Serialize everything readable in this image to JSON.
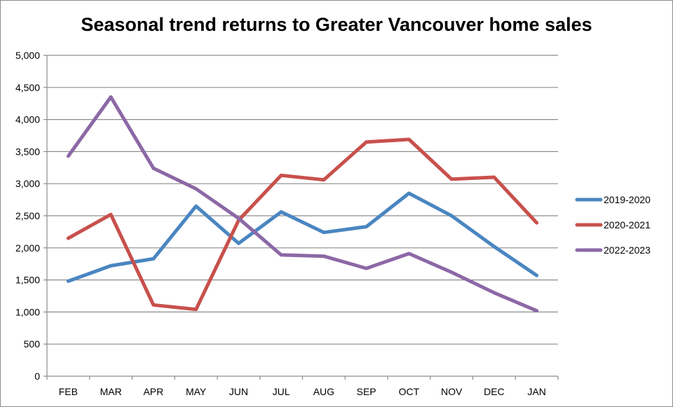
{
  "chart_data": {
    "type": "line",
    "title": "Seasonal trend returns to Greater Vancouver home sales",
    "xlabel": "",
    "ylabel": "",
    "categories": [
      "FEB",
      "MAR",
      "APR",
      "MAY",
      "JUN",
      "JUL",
      "AUG",
      "SEP",
      "OCT",
      "NOV",
      "DEC",
      "JAN"
    ],
    "yticks": [
      0,
      500,
      1000,
      1500,
      2000,
      2500,
      3000,
      3500,
      4000,
      4500,
      5000
    ],
    "ytick_labels": [
      "0",
      "500",
      "1,000",
      "1,500",
      "2,000",
      "2,500",
      "3,000",
      "3,500",
      "4,000",
      "4,500",
      "5,000"
    ],
    "ylim": [
      0,
      5000
    ],
    "grid": true,
    "legend_position": "right",
    "series": [
      {
        "name": "2019-2020",
        "color": "#4a86c1",
        "values": [
          1480,
          1720,
          1830,
          2650,
          2070,
          2560,
          2240,
          2330,
          2850,
          2500,
          2020,
          1570
        ]
      },
      {
        "name": "2020-2021",
        "color": "#c8504c",
        "values": [
          2150,
          2520,
          1110,
          1040,
          2430,
          3130,
          3060,
          3650,
          3690,
          3070,
          3100,
          2390
        ]
      },
      {
        "name": "2022-2023",
        "color": "#8c68a6",
        "values": [
          3430,
          4350,
          3240,
          2920,
          2460,
          1890,
          1870,
          1680,
          1910,
          1620,
          1300,
          1020
        ]
      }
    ]
  }
}
